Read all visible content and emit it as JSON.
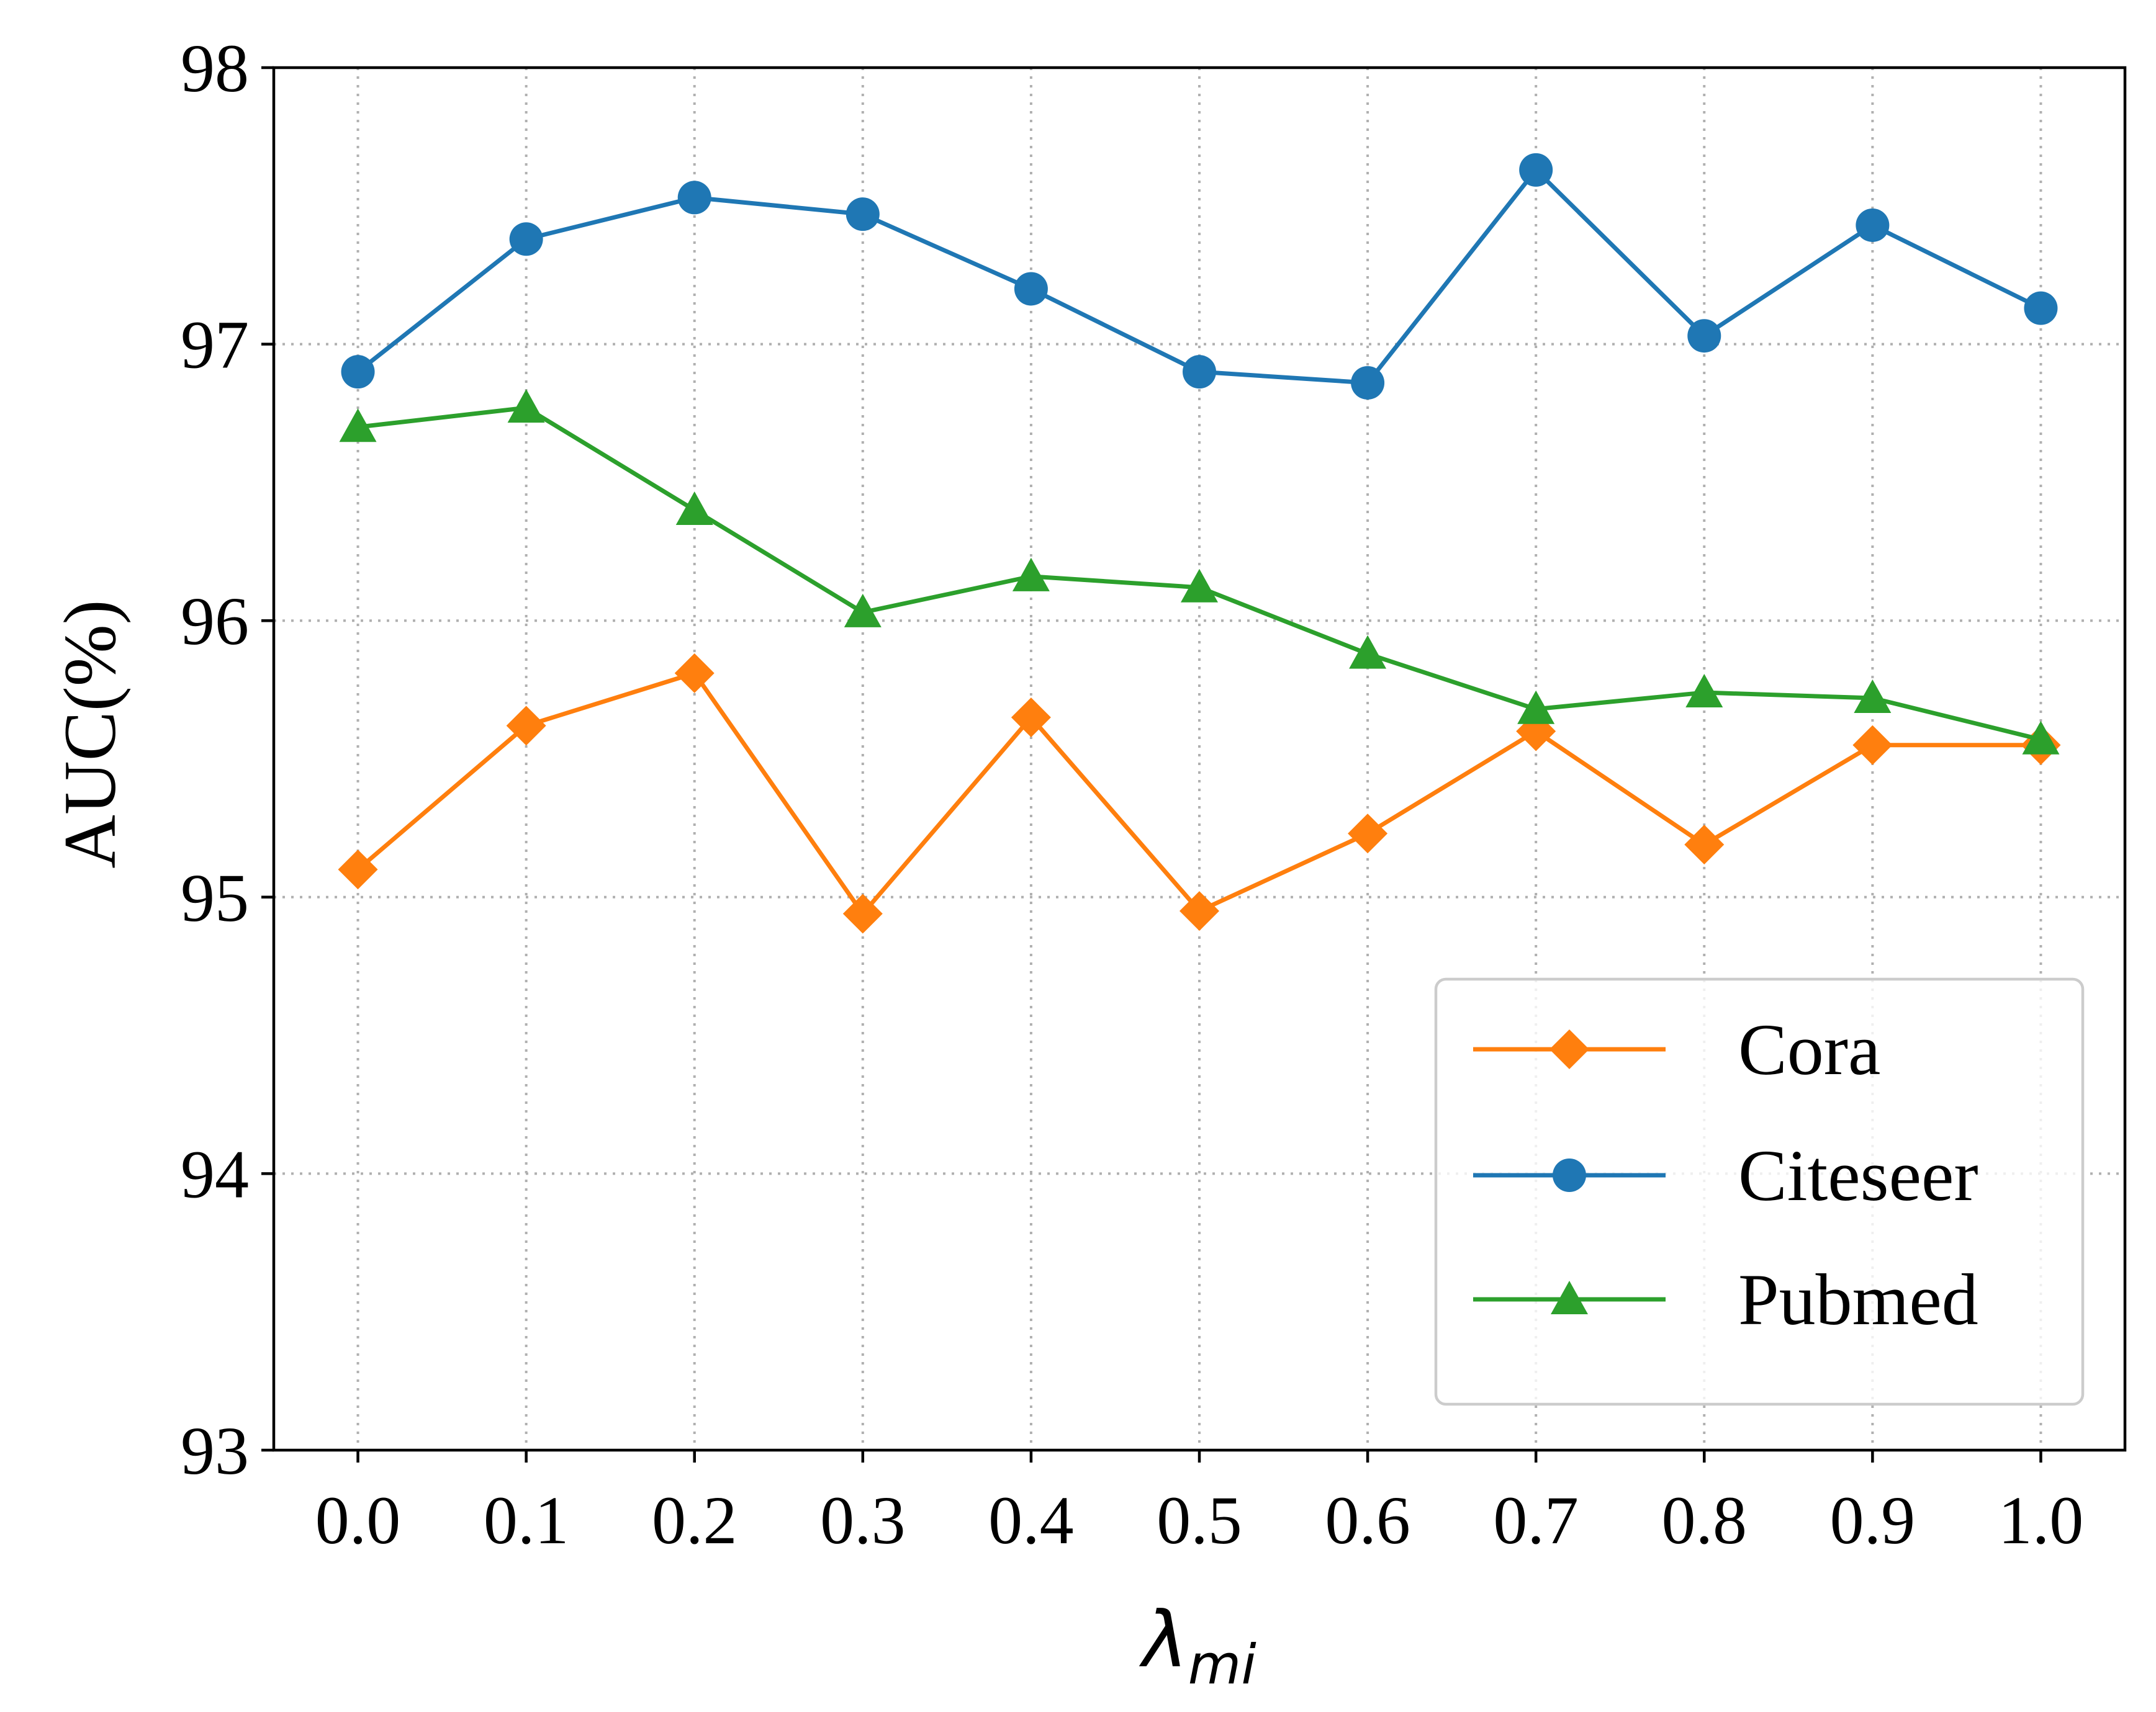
{
  "chart_data": {
    "type": "line",
    "title": "",
    "xlabel": "λ",
    "xlabel_subscript": "mi",
    "ylabel": "AUC(%)",
    "x": [
      "0.0",
      "0.1",
      "0.2",
      "0.3",
      "0.4",
      "0.5",
      "0.6",
      "0.7",
      "0.8",
      "0.9",
      "1.0"
    ],
    "x_values": [
      0.0,
      0.1,
      0.2,
      0.3,
      0.4,
      0.5,
      0.6,
      0.7,
      0.8,
      0.9,
      1.0
    ],
    "xlim": [
      -0.05,
      1.05
    ],
    "ylim": [
      93,
      98
    ],
    "yticks": [
      "93",
      "94",
      "95",
      "96",
      "97",
      "98"
    ],
    "ytick_values": [
      93,
      94,
      95,
      96,
      97,
      98
    ],
    "grid": true,
    "legend_position": "lower right",
    "series": [
      {
        "name": "Cora",
        "color": "#ff7f0e",
        "marker": "diamond",
        "values": [
          95.1,
          95.62,
          95.81,
          94.94,
          95.65,
          94.95,
          95.23,
          95.6,
          95.19,
          95.55,
          95.55
        ]
      },
      {
        "name": "Citeseer",
        "color": "#1f77b4",
        "marker": "circle",
        "values": [
          96.9,
          97.38,
          97.53,
          97.47,
          97.2,
          96.9,
          96.86,
          97.63,
          97.03,
          97.43,
          97.13
        ]
      },
      {
        "name": "Pubmed",
        "color": "#2ca02c",
        "marker": "triangle",
        "values": [
          96.7,
          96.77,
          96.4,
          96.03,
          96.16,
          96.12,
          95.88,
          95.68,
          95.74,
          95.72,
          95.57
        ]
      }
    ]
  }
}
